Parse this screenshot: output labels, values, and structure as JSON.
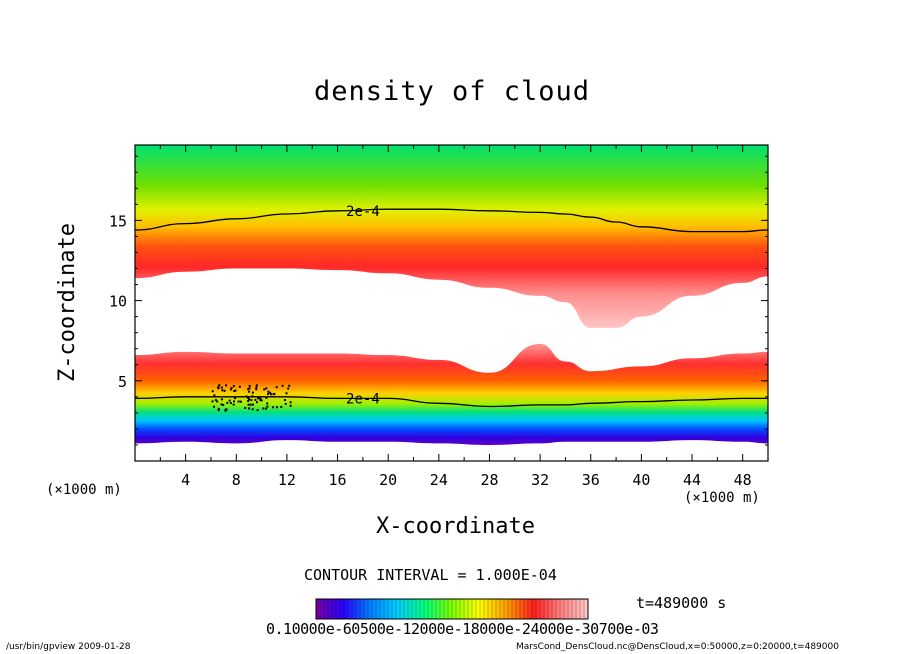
{
  "chart_data": {
    "type": "heatmap",
    "title": "density of cloud",
    "xlabel": "X-coordinate",
    "ylabel": "Z-coordinate",
    "x_unit_label": "(×1000 m)",
    "xlim": [
      0,
      50
    ],
    "ylim": [
      0,
      19.7
    ],
    "x_ticks": [
      4,
      8,
      12,
      16,
      20,
      24,
      28,
      32,
      36,
      40,
      44,
      48
    ],
    "y_ticks": [
      5,
      10,
      15
    ],
    "contour_interval_label": "CONTOUR INTERVAL = 1.000E-04",
    "contour_labels": [
      "2e-4",
      "2e-4"
    ],
    "time_label": "t=489000 s",
    "colorbar_label_text": "0.10000e-60500e-12000e-18000e-24000e-30700e-03",
    "upper_cloud": {
      "x": [
        0,
        4,
        8,
        12,
        16,
        20,
        24,
        28,
        32,
        34,
        36,
        38,
        40,
        44,
        48,
        50
      ],
      "contour_2e4": [
        14.4,
        14.8,
        15.1,
        15.4,
        15.6,
        15.7,
        15.7,
        15.6,
        15.5,
        15.4,
        15.2,
        14.9,
        14.6,
        14.3,
        14.3,
        14.4
      ],
      "lower_edge": [
        11.4,
        11.8,
        12.0,
        12.0,
        11.9,
        11.7,
        11.3,
        10.8,
        10.3,
        9.9,
        8.3,
        8.3,
        9.0,
        10.3,
        11.1,
        11.5
      ]
    },
    "lower_cloud": {
      "x": [
        0,
        4,
        8,
        12,
        16,
        20,
        24,
        28,
        32,
        34,
        36,
        40,
        44,
        48,
        50
      ],
      "top_edge": [
        6.6,
        6.8,
        6.7,
        6.7,
        6.7,
        6.6,
        6.3,
        5.5,
        7.3,
        6.2,
        5.6,
        5.9,
        6.4,
        6.7,
        6.8
      ],
      "contour_2e4": [
        3.9,
        4.0,
        4.0,
        4.0,
        3.9,
        3.9,
        3.6,
        3.4,
        3.5,
        3.5,
        3.6,
        3.7,
        3.8,
        3.9,
        3.9
      ],
      "bottom_edge": [
        1.1,
        1.2,
        1.1,
        1.3,
        1.2,
        1.2,
        1.1,
        1.0,
        1.1,
        1.2,
        1.2,
        1.2,
        1.3,
        1.2,
        1.1
      ]
    },
    "colorscale": [
      "#7a00a0",
      "#2a00ff",
      "#0080ff",
      "#00d0ff",
      "#00ff80",
      "#80ff00",
      "#ffff00",
      "#ffa000",
      "#ff2020",
      "#ff8080",
      "#ffc8c8"
    ]
  },
  "footer": {
    "left": "/usr/bin/gpview  2009-01-28",
    "right": "MarsCond_DensCloud.nc@DensCloud,x=0:50000,z=0:20000,t=489000"
  }
}
